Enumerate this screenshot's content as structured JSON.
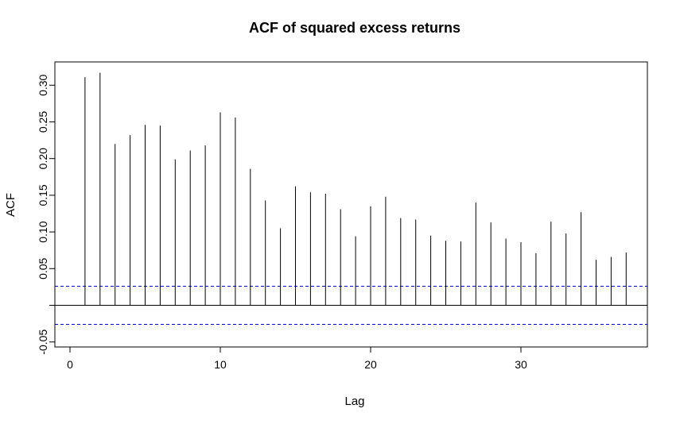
{
  "chart_data": {
    "type": "bar",
    "title": "ACF of squared excess returns",
    "xlabel": "Lag",
    "ylabel": "ACF",
    "xlim": [
      0,
      38
    ],
    "ylim": [
      -0.05,
      0.32
    ],
    "x_ticks": [
      0,
      10,
      20,
      30
    ],
    "y_ticks": [
      -0.05,
      0.05,
      0.1,
      0.15,
      0.2,
      0.25,
      0.3
    ],
    "y_tick_labels": [
      "-0.05",
      "0.05",
      "0.10",
      "0.15",
      "0.20",
      "0.25",
      "0.30"
    ],
    "x_tick_labels": [
      "0",
      "10",
      "20",
      "30"
    ],
    "lags": [
      1,
      2,
      3,
      4,
      5,
      6,
      7,
      8,
      9,
      10,
      11,
      12,
      13,
      14,
      15,
      16,
      17,
      18,
      19,
      20,
      21,
      22,
      23,
      24,
      25,
      26,
      27,
      28,
      29,
      30,
      31,
      32,
      33,
      34,
      35,
      36,
      37
    ],
    "values": [
      0.311,
      0.317,
      0.22,
      0.232,
      0.246,
      0.245,
      0.199,
      0.211,
      0.218,
      0.263,
      0.256,
      0.186,
      0.143,
      0.105,
      0.162,
      0.154,
      0.152,
      0.131,
      0.094,
      0.135,
      0.148,
      0.119,
      0.117,
      0.095,
      0.088,
      0.087,
      0.14,
      0.113,
      0.091,
      0.086,
      0.071,
      0.114,
      0.098,
      0.127,
      0.062,
      0.066,
      0.072
    ],
    "confidence_bound": 0.026,
    "colors": {
      "spike": "#000000",
      "confidence": "#0000cc",
      "zero_line": "#000000"
    },
    "grid": false
  }
}
